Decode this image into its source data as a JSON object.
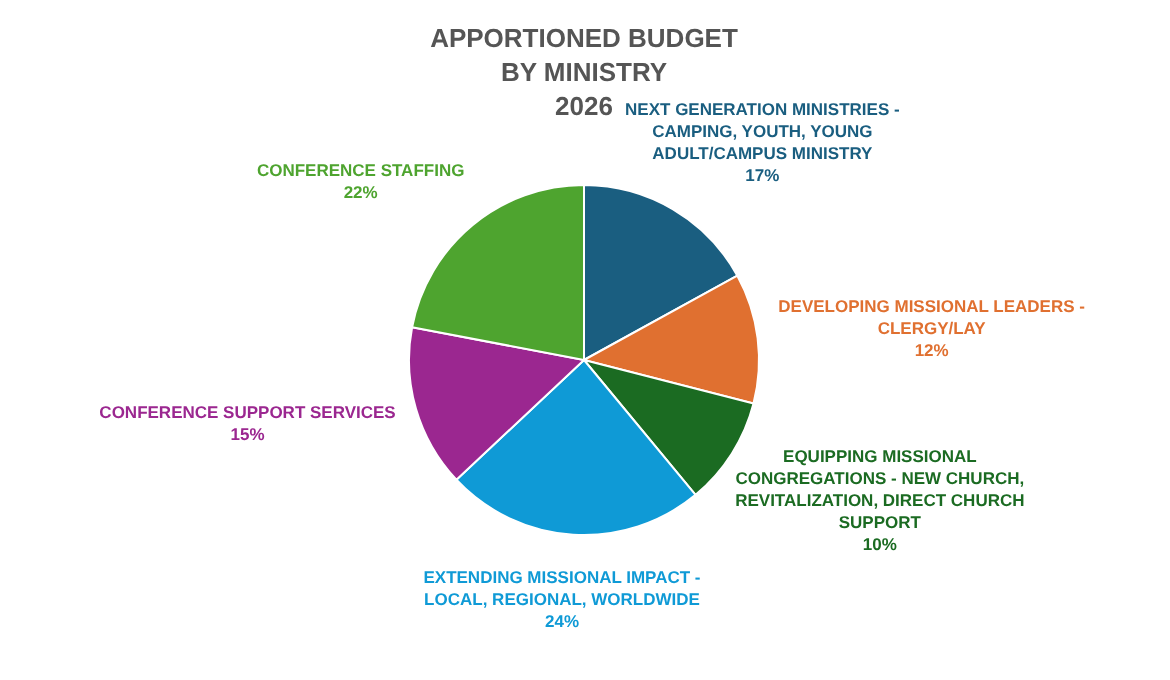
{
  "chart_data": {
    "type": "pie",
    "title": "APPORTIONED BUDGET\nBY MINISTRY\n2026",
    "categories": [
      "NEXT GENERATION MINISTRIES - CAMPING, YOUTH, YOUNG ADULT/CAMPUS MINISTRY",
      "DEVELOPING MISSIONAL LEADERS - CLERGY/LAY",
      "EQUIPPING MISSIONAL CONGREGATIONS - NEW CHURCH, REVITALIZATION, DIRECT CHURCH SUPPORT",
      "EXTENDING MISSIONAL IMPACT - LOCAL, REGIONAL, WORLDWIDE",
      "CONFERENCE SUPPORT SERVICES",
      "CONFERENCE STAFFING"
    ],
    "values": [
      17,
      12,
      10,
      24,
      15,
      22
    ],
    "value_labels": [
      "17%",
      "12%",
      "10%",
      "24%",
      "15%",
      "22%"
    ],
    "colors": [
      "#1a5e80",
      "#e07030",
      "#1b6b22",
      "#0f9ad6",
      "#9b2790",
      "#4ea42f"
    ],
    "legend": false
  }
}
